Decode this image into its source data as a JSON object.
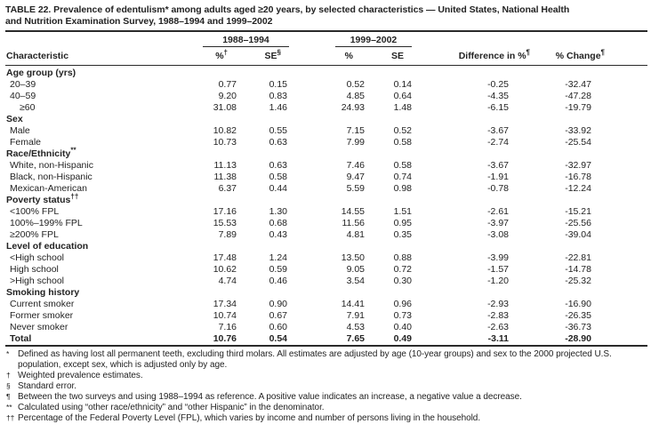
{
  "title": {
    "line1": "TABLE 22. Prevalence of edentulism* among adults aged ≥20 years, by selected characteristics — United States, National Health",
    "line2": "and Nutrition Examination Survey, 1988–1994 and 1999–2002"
  },
  "table": {
    "group_headers": [
      {
        "label": "1988–1994"
      },
      {
        "label": "1999–2002"
      }
    ],
    "columns": {
      "characteristic": "Characteristic",
      "pct1": "%",
      "pct1_sup": "†",
      "se1": "SE",
      "se1_sup": "§",
      "pct2": "%",
      "pct2_sup": "",
      "se2": "SE",
      "se2_sup": "",
      "diff": "Difference in %",
      "diff_sup": "¶",
      "change": "% Change",
      "change_sup": "¶"
    },
    "rows": [
      {
        "type": "section",
        "label": "Age group (yrs)"
      },
      {
        "type": "data",
        "label": "20–39",
        "values": [
          "0.77",
          "0.15",
          "0.52",
          "0.14",
          "-0.25",
          "-32.47"
        ]
      },
      {
        "type": "data",
        "label": "40–59",
        "values": [
          "9.20",
          "0.83",
          "4.85",
          "0.64",
          "-4.35",
          "-47.28"
        ]
      },
      {
        "type": "data",
        "label": "≥60",
        "indent": 2,
        "values": [
          "31.08",
          "1.46",
          "24.93",
          "1.48",
          "-6.15",
          "-19.79"
        ]
      },
      {
        "type": "section",
        "label": "Sex"
      },
      {
        "type": "data",
        "label": "Male",
        "values": [
          "10.82",
          "0.55",
          "7.15",
          "0.52",
          "-3.67",
          "-33.92"
        ]
      },
      {
        "type": "data",
        "label": "Female",
        "values": [
          "10.73",
          "0.63",
          "7.99",
          "0.58",
          "-2.74",
          "-25.54"
        ]
      },
      {
        "type": "section",
        "label": "Race/Ethnicity",
        "sup": "**"
      },
      {
        "type": "data",
        "label": "White, non-Hispanic",
        "values": [
          "11.13",
          "0.63",
          "7.46",
          "0.58",
          "-3.67",
          "-32.97"
        ]
      },
      {
        "type": "data",
        "label": "Black, non-Hispanic",
        "values": [
          "11.38",
          "0.58",
          "9.47",
          "0.74",
          "-1.91",
          "-16.78"
        ]
      },
      {
        "type": "data",
        "label": "Mexican-American",
        "values": [
          "6.37",
          "0.44",
          "5.59",
          "0.98",
          "-0.78",
          "-12.24"
        ]
      },
      {
        "type": "section",
        "label": "Poverty status",
        "sup": "††"
      },
      {
        "type": "data",
        "label": "<100% FPL",
        "values": [
          "17.16",
          "1.30",
          "14.55",
          "1.51",
          "-2.61",
          "-15.21"
        ]
      },
      {
        "type": "data",
        "label": "100%–199% FPL",
        "values": [
          "15.53",
          "0.68",
          "11.56",
          "0.95",
          "-3.97",
          "-25.56"
        ]
      },
      {
        "type": "data",
        "label": "≥200% FPL",
        "values": [
          "7.89",
          "0.43",
          "4.81",
          "0.35",
          "-3.08",
          "-39.04"
        ]
      },
      {
        "type": "section",
        "label": "Level of education"
      },
      {
        "type": "data",
        "label": "<High school",
        "values": [
          "17.48",
          "1.24",
          "13.50",
          "0.88",
          "-3.99",
          "-22.81"
        ]
      },
      {
        "type": "data",
        "label": "High school",
        "values": [
          "10.62",
          "0.59",
          "9.05",
          "0.72",
          "-1.57",
          "-14.78"
        ]
      },
      {
        "type": "data",
        "label": ">High school",
        "values": [
          "4.74",
          "0.46",
          "3.54",
          "0.30",
          "-1.20",
          "-25.32"
        ]
      },
      {
        "type": "section",
        "label": "Smoking history"
      },
      {
        "type": "data",
        "label": "Current smoker",
        "values": [
          "17.34",
          "0.90",
          "14.41",
          "0.96",
          "-2.93",
          "-16.90"
        ]
      },
      {
        "type": "data",
        "label": "Former smoker",
        "values": [
          "10.74",
          "0.67",
          "7.91",
          "0.73",
          "-2.83",
          "-26.35"
        ]
      },
      {
        "type": "data",
        "label": "Never smoker",
        "values": [
          "7.16",
          "0.60",
          "4.53",
          "0.40",
          "-2.63",
          "-36.73"
        ]
      },
      {
        "type": "total",
        "label": "Total",
        "values": [
          "10.76",
          "0.54",
          "7.65",
          "0.49",
          "-3.11",
          "-28.90"
        ]
      }
    ]
  },
  "footnotes": [
    {
      "marker": "*",
      "text": "Defined as having lost all permanent teeth, excluding third molars. All estimates are adjusted by age (10-year groups) and sex to the 2000 projected U.S. population, except sex, which is adjusted only by age."
    },
    {
      "marker": "†",
      "text": "Weighted prevalence estimates."
    },
    {
      "marker": "§",
      "text": "Standard error."
    },
    {
      "marker": "¶",
      "text": "Between the two surveys and using 1988–1994 as reference. A positive value indicates an increase, a negative value a decrease."
    },
    {
      "marker": "**",
      "text": "Calculated using “other race/ethnicity” and “other Hispanic” in the denominator."
    },
    {
      "marker": "††",
      "text": "Percentage of the Federal Poverty Level (FPL), which varies by income and number of persons living in the household."
    }
  ]
}
